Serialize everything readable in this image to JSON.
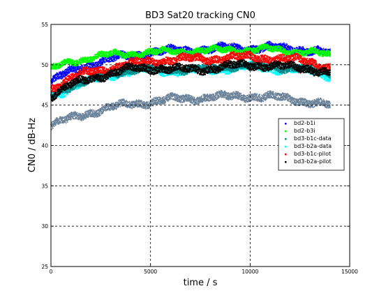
{
  "chart_data": {
    "type": "scatter",
    "title": "BD3 Sat20 tracking CN0",
    "xlabel": "time / s",
    "ylabel": "CN0 / dB-Hz",
    "xlim": [
      0,
      15000
    ],
    "ylim": [
      25,
      55
    ],
    "xticks": [
      0,
      5000,
      10000,
      15000
    ],
    "yticks": [
      25,
      30,
      35,
      40,
      45,
      50,
      55
    ],
    "x_tick_labels": [
      "0",
      "5000",
      "10000",
      "15000"
    ],
    "y_tick_labels": [
      "25",
      "30",
      "35",
      "40",
      "45",
      "50",
      "55"
    ],
    "grid": true,
    "legend_position": "right",
    "series": [
      {
        "name": "bd2-b1i",
        "color": "#0000ff",
        "x": [
          0,
          1000,
          2000,
          3000,
          4000,
          5000,
          6000,
          7000,
          8000,
          9000,
          10000,
          11000,
          12000,
          13000,
          14000
        ],
        "y": [
          48.0,
          49.3,
          50.2,
          50.8,
          51.2,
          51.6,
          51.8,
          51.9,
          52.0,
          52.2,
          52.1,
          52.2,
          52.1,
          51.9,
          51.4
        ]
      },
      {
        "name": "bd2-b3i",
        "color": "#00ff00",
        "x": [
          0,
          1000,
          2000,
          3000,
          4000,
          5000,
          6000,
          7000,
          8000,
          9000,
          10000,
          11000,
          12000,
          13000,
          14000
        ],
        "y": [
          49.5,
          50.5,
          51.0,
          51.3,
          51.5,
          51.6,
          51.7,
          51.8,
          51.8,
          52.0,
          51.9,
          52.0,
          51.8,
          51.6,
          51.2
        ]
      },
      {
        "name": "bd3-b1c-data",
        "color": "#008b8b",
        "x": [
          0,
          1000,
          2000,
          3000,
          4000,
          5000,
          6000,
          7000,
          8000,
          9000,
          10000,
          11000,
          12000,
          13000,
          14000
        ],
        "y": [
          46.2,
          47.5,
          48.3,
          48.9,
          49.5,
          49.6,
          49.5,
          49.5,
          49.6,
          49.9,
          50.0,
          49.8,
          49.7,
          49.6,
          49.0
        ]
      },
      {
        "name": "bd3-b2a-data",
        "color": "#00ffff",
        "x": [
          0,
          1000,
          2000,
          3000,
          4000,
          5000,
          6000,
          7000,
          8000,
          9000,
          10000,
          11000,
          12000,
          13000,
          14000
        ],
        "y": [
          46.0,
          47.3,
          48.1,
          48.8,
          49.3,
          49.4,
          49.3,
          49.3,
          49.4,
          49.7,
          49.8,
          49.6,
          49.5,
          49.3,
          48.7
        ]
      },
      {
        "name": "bd3-b1c-pilot",
        "color": "#ff0000",
        "x": [
          0,
          1000,
          2000,
          3000,
          4000,
          5000,
          6000,
          7000,
          8000,
          9000,
          10000,
          11000,
          12000,
          13000,
          14000
        ],
        "y": [
          47.2,
          48.5,
          49.2,
          49.7,
          50.2,
          50.5,
          50.7,
          50.8,
          50.8,
          51.0,
          51.0,
          50.9,
          50.7,
          50.5,
          49.7
        ]
      },
      {
        "name": "bd3-b2a-pilot",
        "color": "#000000",
        "x": [
          0,
          1000,
          2000,
          3000,
          4000,
          5000,
          6000,
          7000,
          8000,
          9000,
          10000,
          11000,
          12000,
          13000,
          14000
        ],
        "y": [
          46.3,
          47.6,
          48.4,
          49.0,
          49.6,
          49.7,
          49.5,
          49.5,
          49.6,
          49.9,
          50.1,
          49.9,
          49.8,
          49.6,
          49.0
        ]
      },
      {
        "name": "",
        "color": "#6b8299",
        "x": [
          0,
          1000,
          2000,
          3000,
          4000,
          5000,
          6000,
          7000,
          8000,
          9000,
          10000,
          11000,
          12000,
          13000,
          14000
        ],
        "y": [
          42.6,
          43.4,
          44.2,
          44.8,
          45.2,
          45.5,
          45.8,
          45.9,
          46.1,
          46.1,
          46.2,
          46.1,
          45.8,
          45.5,
          45.0
        ]
      }
    ]
  }
}
